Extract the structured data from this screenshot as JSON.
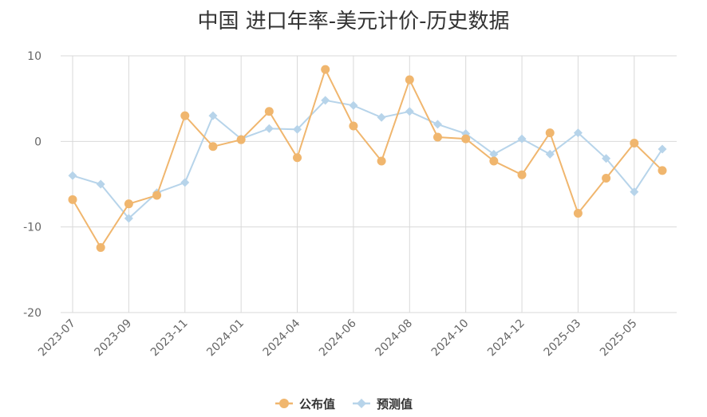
{
  "chart_data": {
    "type": "line",
    "title": "中国 进口年率-美元计价-历史数据",
    "xlabel": "",
    "ylabel": "",
    "ylim": [
      -20,
      10
    ],
    "yticks": [
      10,
      0,
      -10,
      -20
    ],
    "grid": true,
    "legend_position": "bottom-center",
    "x": [
      "2023-07",
      "2023-08",
      "2023-09",
      "2023-10",
      "2023-11",
      "2023-12",
      "2024-01",
      "2024-03",
      "2024-04",
      "2024-05",
      "2024-06",
      "2024-07",
      "2024-08",
      "2024-09",
      "2024-10",
      "2024-11",
      "2024-12",
      "2025-01",
      "2025-03",
      "2025-04",
      "2025-05",
      "2025-06"
    ],
    "xtick_labels": [
      "2023-07",
      "2023-09",
      "2023-11",
      "2024-01",
      "2024-04",
      "2024-06",
      "2024-08",
      "2024-10",
      "2024-12",
      "2025-03",
      "2025-05"
    ],
    "series": [
      {
        "name": "公布值",
        "color": "#f0b66e",
        "marker": "circle",
        "values": [
          -6.8,
          -12.4,
          -7.3,
          -6.3,
          3.0,
          -0.6,
          0.2,
          3.5,
          -1.9,
          8.4,
          1.8,
          -2.3,
          7.2,
          0.5,
          0.3,
          -2.3,
          -3.9,
          1.0,
          -8.4,
          -4.3,
          -0.2,
          -3.4
        ]
      },
      {
        "name": "预测值",
        "color": "#b7d4ea",
        "marker": "diamond",
        "values": [
          -4.0,
          -5.0,
          -9.0,
          -6.0,
          -4.8,
          3.0,
          0.3,
          1.5,
          1.4,
          4.8,
          4.2,
          2.8,
          3.5,
          2.0,
          0.9,
          -1.5,
          0.3,
          -1.5,
          1.0,
          -2.0,
          -5.9,
          -0.9
        ]
      }
    ]
  }
}
